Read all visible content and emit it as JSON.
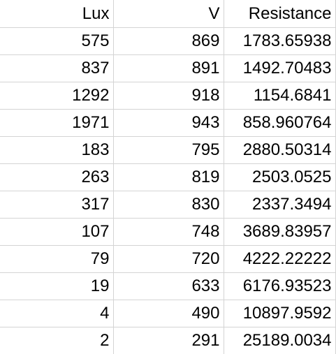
{
  "sheet": {
    "headers": [
      "Lux",
      "V",
      "Resistance"
    ],
    "rows": [
      [
        "575",
        "869",
        "1783.65938"
      ],
      [
        "837",
        "891",
        "1492.70483"
      ],
      [
        "1292",
        "918",
        "1154.6841"
      ],
      [
        "1971",
        "943",
        "858.960764"
      ],
      [
        "183",
        "795",
        "2880.50314"
      ],
      [
        "263",
        "819",
        "2503.0525"
      ],
      [
        "317",
        "830",
        "2337.3494"
      ],
      [
        "107",
        "748",
        "3689.83957"
      ],
      [
        "79",
        "720",
        "4222.22222"
      ],
      [
        "19",
        "633",
        "6176.93523"
      ],
      [
        "4",
        "490",
        "10897.9592"
      ],
      [
        "2",
        "291",
        "25189.0034"
      ]
    ]
  }
}
